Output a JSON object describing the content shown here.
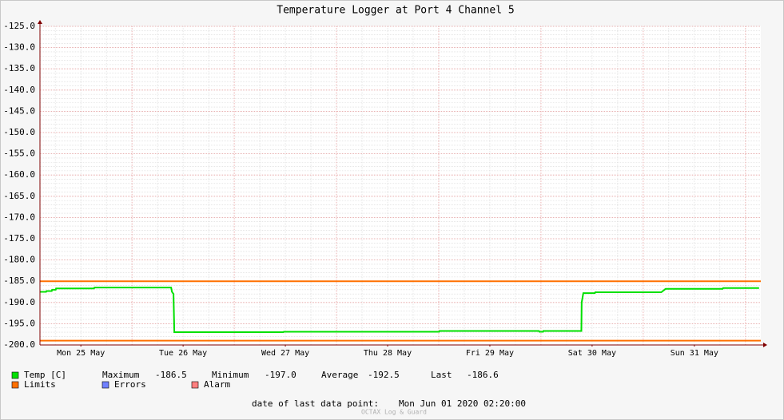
{
  "chart_data": {
    "type": "line",
    "title": "Temperature Logger at Port 4 Channel 5",
    "xlim": [
      0.1,
      7.15
    ],
    "xticks": [
      {
        "value": 0.5,
        "label": "Mon 25 May"
      },
      {
        "value": 1.5,
        "label": "Tue 26 May"
      },
      {
        "value": 2.5,
        "label": "Wed 27 May"
      },
      {
        "value": 3.5,
        "label": "Thu 28 May"
      },
      {
        "value": 4.5,
        "label": "Fri 29 May"
      },
      {
        "value": 5.5,
        "label": "Sat 30 May"
      },
      {
        "value": 6.5,
        "label": "Sun 31 May"
      }
    ],
    "ylim": [
      -200,
      -125
    ],
    "yticks": [
      {
        "value": -125,
        "label": "-125.0"
      },
      {
        "value": -130,
        "label": "-130.0"
      },
      {
        "value": -135,
        "label": "-135.0"
      },
      {
        "value": -140,
        "label": "-140.0"
      },
      {
        "value": -145,
        "label": "-145.0"
      },
      {
        "value": -150,
        "label": "-150.0"
      },
      {
        "value": -155,
        "label": "-155.0"
      },
      {
        "value": -160,
        "label": "-160.0"
      },
      {
        "value": -165,
        "label": "-165.0"
      },
      {
        "value": -170,
        "label": "-170.0"
      },
      {
        "value": -175,
        "label": "-175.0"
      },
      {
        "value": -180,
        "label": "-180.0"
      },
      {
        "value": -185,
        "label": "-185.0"
      },
      {
        "value": -190,
        "label": "-190.0"
      },
      {
        "value": -195,
        "label": "-195.0"
      },
      {
        "value": -200,
        "label": "-200.0"
      }
    ],
    "grid": true,
    "series": [
      {
        "name": "Temp [C]",
        "color": "#00e000",
        "x": [
          0.102,
          0.16,
          0.164,
          0.215,
          0.219,
          0.254,
          0.258,
          0.629,
          0.633,
          1.383,
          1.391,
          1.406,
          1.414,
          2.48,
          2.484,
          4.004,
          4.008,
          4.98,
          4.984,
          5.02,
          5.023,
          5.395,
          5.398,
          5.414,
          5.527,
          5.531,
          6.176,
          6.219,
          6.777,
          6.781,
          7.133
        ],
        "values": [
          -187.5,
          -187.5,
          -187.3,
          -187.3,
          -187.0,
          -187.0,
          -186.7,
          -186.7,
          -186.5,
          -186.5,
          -187.5,
          -188.0,
          -197.0,
          -197.0,
          -196.9,
          -196.9,
          -196.7,
          -196.7,
          -196.9,
          -196.9,
          -196.7,
          -196.7,
          -190.0,
          -187.8,
          -187.8,
          -187.6,
          -187.6,
          -186.8,
          -186.8,
          -186.6,
          -186.6
        ]
      },
      {
        "name": "Limits",
        "color": "#ff7000",
        "values": [
          -185,
          -199
        ]
      },
      {
        "name": "Errors",
        "color": "#7080ff",
        "values": []
      },
      {
        "name": "Alarm",
        "color": "#ff8080",
        "values": []
      }
    ],
    "stats": [
      {
        "label": "Maximum",
        "value": "-186.5"
      },
      {
        "label": "Minimum",
        "value": "-197.0"
      },
      {
        "label": "Average",
        "value": "-192.5"
      },
      {
        "label": "Last",
        "value": "-186.6"
      }
    ],
    "footer_label": "date of last data point:",
    "footer_value": "Mon Jun 01 2020 02:20:00",
    "watermark": "OCTAX Log & Guard"
  }
}
